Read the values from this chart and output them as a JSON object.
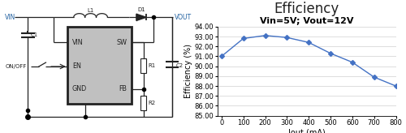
{
  "chart_title": "Efficiency",
  "annotation": "Vin=5V; Vout=12V",
  "xlabel": "Iout (mA)",
  "ylabel": "Efficiency (%)",
  "x_data": [
    0,
    100,
    200,
    300,
    400,
    500,
    600,
    700,
    800
  ],
  "y_data": [
    91.0,
    92.8,
    93.1,
    92.9,
    92.4,
    91.3,
    90.4,
    88.9,
    88.0
  ],
  "ylim": [
    85.0,
    94.0
  ],
  "xlim": [
    -20,
    800
  ],
  "yticks": [
    85.0,
    86.0,
    87.0,
    88.0,
    89.0,
    90.0,
    91.0,
    92.0,
    93.0,
    94.0
  ],
  "xticks": [
    0,
    100,
    200,
    300,
    400,
    500,
    600,
    700,
    800
  ],
  "line_color": "#4472C4",
  "marker": "D",
  "marker_size": 3,
  "bg_color": "#ffffff",
  "plot_bg": "#ffffff",
  "grid_color": "#d0d0d0",
  "title_fontsize": 12,
  "annotation_fontsize": 8,
  "axis_fontsize": 6,
  "label_fontsize": 7,
  "ic_facecolor": "#c0c0c0",
  "ic_edgecolor": "#222222",
  "wire_color": "#222222",
  "text_color": "#222222",
  "label_color": "#2060a0"
}
